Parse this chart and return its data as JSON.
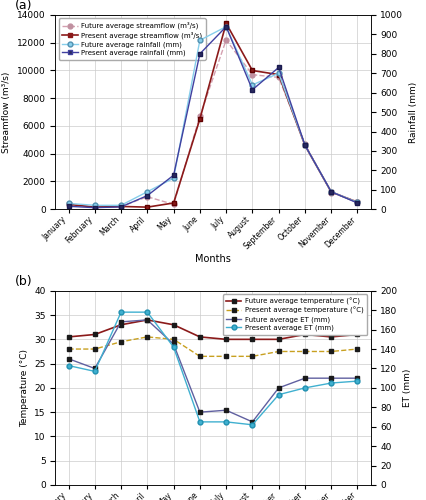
{
  "months": [
    "January",
    "February",
    "March",
    "April",
    "May",
    "June",
    "July",
    "August",
    "September",
    "October",
    "November",
    "December"
  ],
  "panel_a": {
    "future_streamflow": [
      350,
      150,
      200,
      900,
      350,
      6700,
      12200,
      9700,
      9500,
      4700,
      1200,
      550
    ],
    "present_streamflow": [
      350,
      150,
      200,
      150,
      450,
      6500,
      13400,
      10000,
      9700,
      4600,
      1250,
      500
    ],
    "future_rainfall": [
      30,
      20,
      20,
      90,
      160,
      870,
      940,
      640,
      700,
      330,
      90,
      35
    ],
    "present_rainfall": [
      15,
      8,
      12,
      70,
      175,
      800,
      940,
      615,
      730,
      330,
      90,
      32
    ],
    "ylabel_left": "Streamflow (m³/s)",
    "ylabel_right": "Rainfall (mm)",
    "ylim_left": [
      0,
      14000
    ],
    "ylim_right": [
      0,
      1000
    ],
    "yticks_left": [
      0,
      2000,
      4000,
      6000,
      8000,
      10000,
      12000,
      14000
    ],
    "yticks_right": [
      0,
      100,
      200,
      300,
      400,
      500,
      600,
      700,
      800,
      900,
      1000
    ],
    "legend": [
      "Future average streamflow (m³/s)",
      "Present average streamflow (m³/s)",
      "Future average rainfall (mm)",
      "Present average rainfall (mm)"
    ],
    "panel_label": "(a)"
  },
  "panel_b": {
    "future_temp": [
      30.5,
      31.0,
      33.0,
      34.0,
      33.0,
      30.5,
      30.0,
      30.0,
      30.0,
      31.0,
      30.5,
      31.0
    ],
    "present_temp": [
      28.0,
      28.0,
      29.5,
      30.5,
      30.0,
      26.5,
      26.5,
      26.5,
      27.5,
      27.5,
      27.5,
      28.0
    ],
    "future_et": [
      130,
      120,
      168,
      170,
      145,
      75,
      77,
      65,
      100,
      110,
      110,
      110
    ],
    "present_et": [
      123,
      117,
      178,
      178,
      142,
      65,
      65,
      62,
      93,
      100,
      105,
      107
    ],
    "ylabel_left": "Temperature (°C)",
    "ylabel_right": "ET (mm)",
    "ylim_left": [
      0,
      40
    ],
    "ylim_right": [
      0,
      200
    ],
    "yticks_left": [
      0,
      5,
      10,
      15,
      20,
      25,
      30,
      35,
      40
    ],
    "yticks_right": [
      0,
      20,
      40,
      60,
      80,
      100,
      120,
      140,
      160,
      180,
      200
    ],
    "legend": [
      "Future average temperature (°C)",
      "Present average temperature (°C)",
      "Future average ET (mm)",
      "Present average ET (mm)"
    ],
    "panel_label": "(b)"
  },
  "xlabel": "Months",
  "colors": {
    "future_streamflow_line": "#d4a0b0",
    "future_streamflow_marker": "#c090a0",
    "present_streamflow_line": "#8b1a1a",
    "present_streamflow_marker": "#8b1a1a",
    "future_rainfall_line": "#87ceeb",
    "future_rainfall_marker": "#87ceeb",
    "present_rainfall_line": "#4040a0",
    "present_rainfall_marker": "#2a2a60",
    "future_temp_line": "#8b1a1a",
    "future_temp_marker": "#1a1a1a",
    "present_temp_line": "#c8a020",
    "present_temp_marker": "#1a1a1a",
    "future_et_line": "#6060a0",
    "future_et_marker": "#1a1a1a",
    "present_et_line": "#40b0d0",
    "present_et_marker": "#40b0d0"
  }
}
